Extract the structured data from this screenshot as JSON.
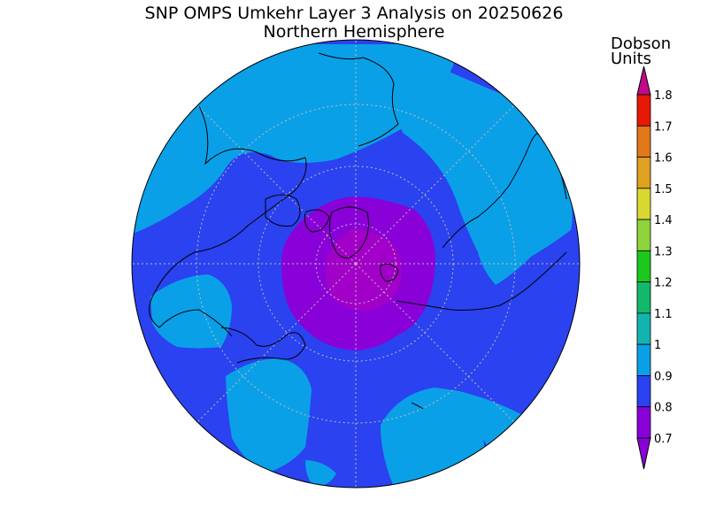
{
  "title": "SNP OMPS Umkehr Layer 3 Analysis on 20250626",
  "subtitle": "Northern Hemisphere",
  "colorbar": {
    "units_line1": "Dobson",
    "units_line2": "Units",
    "levels": [
      "0.7",
      "0.8",
      "0.9",
      "1",
      "1.1",
      "1.2",
      "1.3",
      "1.4",
      "1.5",
      "1.6",
      "1.7",
      "1.8"
    ],
    "colors": [
      "#8a00d8",
      "#2a42f0",
      "#0aa0e8",
      "#12b4b0",
      "#12b96a",
      "#1cc81c",
      "#8ed43a",
      "#d8d830",
      "#e0a020",
      "#e07818",
      "#e81808",
      "#c20a8a"
    ]
  },
  "map": {
    "projection": "north-polar-stereographic",
    "background_color": "#2a42f0",
    "graticule": "dotted-latitude-circles-and-meridians"
  }
}
